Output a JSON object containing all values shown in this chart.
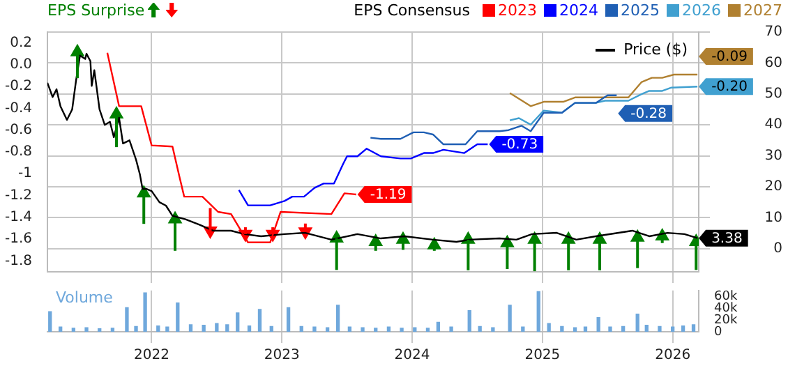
{
  "chart_data": [
    {
      "type": "line",
      "legend": "top",
      "legend_title": "EPS Consensus",
      "grid": true,
      "tick_labels": "y",
      "xlim": [
        2021.2,
        2026.2
      ],
      "xticks": [
        2022,
        2023,
        2024,
        2025,
        2026
      ],
      "ylim": [
        -1.9,
        0.3
      ],
      "yticks": [
        0.2,
        {
          "value": 0,
          "label": "0.0"
        },
        -0.2,
        -0.4,
        -0.6,
        -0.8,
        -1,
        -1.2,
        -1.4,
        -1.6,
        -1.8
      ],
      "y2lim": [
        -7.5,
        70
      ],
      "y2ticks": [
        0,
        10,
        20,
        30,
        40,
        50,
        60,
        70
      ],
      "series": [
        {
          "name": "2023",
          "color": "#ff0000",
          "x": [
            2021.66,
            2021.75,
            2021.92,
            2022.0,
            2022.16,
            2022.21,
            2022.25,
            2022.39,
            2022.51,
            2022.61,
            2022.74,
            2022.91,
            2022.99,
            2023.38,
            2023.48,
            2023.57
          ],
          "values": [
            0.11,
            -0.38,
            -0.38,
            -0.74,
            -0.75,
            -1.01,
            -1.21,
            -1.21,
            -1.35,
            -1.37,
            -1.63,
            -1.63,
            -1.35,
            -1.37,
            -1.18,
            -1.19
          ],
          "value_labels": [
            null,
            null,
            null,
            null,
            null,
            null,
            null,
            null,
            null,
            null,
            null,
            null,
            null,
            null,
            null,
            "-1.19"
          ]
        },
        {
          "name": "2024",
          "color": "#0000ff",
          "x": [
            2022.67,
            2022.74,
            2022.91,
            2023.02,
            2023.08,
            2023.17,
            2023.25,
            2023.32,
            2023.4,
            2023.47,
            2023.5,
            2023.58,
            2023.65,
            2023.76,
            2023.91,
            2023.99,
            2024.09,
            2024.16,
            2024.24,
            2024.4,
            2024.5,
            2024.58
          ],
          "values": [
            -1.15,
            -1.29,
            -1.29,
            -1.25,
            -1.21,
            -1.21,
            -1.13,
            -1.09,
            -1.09,
            -0.91,
            -0.84,
            -0.84,
            -0.77,
            -0.84,
            -0.86,
            -0.86,
            -0.81,
            -0.81,
            -0.78,
            -0.81,
            -0.73,
            -0.73
          ],
          "value_labels": [
            null,
            null,
            null,
            null,
            null,
            null,
            null,
            null,
            null,
            null,
            null,
            null,
            null,
            null,
            null,
            null,
            null,
            null,
            null,
            null,
            null,
            "-0.73"
          ]
        },
        {
          "name": "2025",
          "color": "#1f5fb4",
          "x": [
            2023.68,
            2023.76,
            2023.91,
            2024.01,
            2024.09,
            2024.16,
            2024.24,
            2024.41,
            2024.5,
            2024.67,
            2024.74,
            2024.84,
            2024.91,
            2025.01,
            2025.15,
            2025.25,
            2025.41,
            2025.5,
            2025.57
          ],
          "values": [
            -0.67,
            -0.68,
            -0.68,
            -0.62,
            -0.62,
            -0.64,
            -0.73,
            -0.73,
            -0.61,
            -0.61,
            -0.6,
            -0.56,
            -0.61,
            -0.44,
            -0.44,
            -0.35,
            -0.35,
            -0.28,
            -0.28
          ],
          "value_labels": [
            null,
            null,
            null,
            null,
            null,
            null,
            null,
            null,
            null,
            null,
            null,
            null,
            null,
            null,
            null,
            null,
            null,
            null,
            "-0.28"
          ]
        },
        {
          "name": "2026",
          "color": "#40a0d0",
          "x": [
            2024.75,
            2024.82,
            2024.91,
            2025.01,
            2025.15,
            2025.25,
            2025.41,
            2025.48,
            2025.66,
            2025.76,
            2025.82,
            2025.92,
            2025.99,
            2026.19
          ],
          "values": [
            -0.51,
            -0.49,
            -0.55,
            -0.42,
            -0.44,
            -0.35,
            -0.35,
            -0.33,
            -0.33,
            -0.27,
            -0.24,
            -0.24,
            -0.21,
            -0.2
          ],
          "value_labels": [
            null,
            null,
            null,
            null,
            null,
            null,
            null,
            null,
            null,
            null,
            null,
            null,
            null,
            "-0.20"
          ]
        },
        {
          "name": "2027",
          "color": "#b08030",
          "x": [
            2024.75,
            2024.91,
            2025.01,
            2025.16,
            2025.25,
            2025.66,
            2025.76,
            2025.84,
            2025.92,
            2026.01,
            2026.19
          ],
          "values": [
            -0.26,
            -0.38,
            -0.34,
            -0.34,
            -0.3,
            -0.3,
            -0.16,
            -0.12,
            -0.12,
            -0.09,
            -0.09
          ],
          "value_labels": [
            null,
            null,
            null,
            null,
            null,
            null,
            null,
            null,
            null,
            null,
            "-0.09"
          ]
        },
        {
          "name": "Price ($)",
          "axis": "y2",
          "color": "#000000",
          "x": [
            2021.2,
            2021.24,
            2021.27,
            2021.3,
            2021.35,
            2021.39,
            2021.42,
            2021.45,
            2021.49,
            2021.5,
            2021.53,
            2021.54,
            2021.56,
            2021.6,
            2021.64,
            2021.68,
            2021.71,
            2021.75,
            2021.78,
            2021.83,
            2021.88,
            2021.91,
            2021.93,
            2021.96,
            2022.0,
            2022.06,
            2022.11,
            2022.16,
            2022.26,
            2022.37,
            2022.47,
            2022.61,
            2022.71,
            2022.84,
            2023.02,
            2023.18,
            2023.38,
            2023.58,
            2023.76,
            2023.94,
            2024.16,
            2024.34,
            2024.44,
            2024.67,
            2024.8,
            2024.92,
            2025.11,
            2025.26,
            2025.41,
            2025.69,
            2025.82,
            2025.96,
            2026.09,
            2026.19
          ],
          "values": [
            53.6,
            49,
            51.5,
            46,
            41.6,
            45,
            54.4,
            62.4,
            61.3,
            63,
            60.6,
            52.6,
            57.7,
            45,
            40,
            41,
            36,
            42.3,
            34,
            35,
            28.8,
            24,
            19.3,
            19.3,
            18.6,
            15,
            13.9,
            10.6,
            9.5,
            7.7,
            5.8,
            5.8,
            4.7,
            4,
            4.7,
            5.1,
            2.9,
            4.7,
            3.3,
            4,
            2.9,
            2.2,
            2.9,
            3.3,
            2.9,
            4.7,
            5.1,
            2.9,
            4,
            5.8,
            4,
            5.1,
            4.7,
            3.38
          ],
          "value_labels": [
            null,
            null,
            null,
            null,
            null,
            null,
            null,
            null,
            null,
            null,
            null,
            null,
            null,
            null,
            null,
            null,
            null,
            null,
            null,
            null,
            null,
            null,
            null,
            null,
            null,
            null,
            null,
            null,
            null,
            null,
            null,
            null,
            null,
            null,
            null,
            null,
            null,
            null,
            null,
            null,
            null,
            null,
            null,
            null,
            null,
            null,
            null,
            null,
            null,
            null,
            null,
            null,
            null,
            "3.38"
          ]
        },
        {
          "name": "EPS Surprise",
          "type": "scatter",
          "axis": "y2",
          "marker": "triangle",
          "color": "#008000",
          "x": [
            2021.43,
            2021.73,
            2021.94,
            2022.18,
            2022.45,
            2022.72,
            2022.93,
            2023.18,
            2023.42,
            2023.72,
            2023.93,
            2024.17,
            2024.43,
            2024.73,
            2024.94,
            2025.2,
            2025.44,
            2025.73,
            2025.92,
            2026.18
          ],
          "values": [
            63.5,
            43.4,
            17.9,
            9.5,
            5.8,
            4.7,
            4.7,
            5.5,
            3.3,
            2.2,
            2.9,
            1.1,
            2.9,
            1.8,
            2.9,
            2.9,
            2.9,
            3.6,
            4.0,
            2.2
          ],
          "errors": [
            [
              55.1,
              63.5
            ],
            [
              32.8,
              43.4
            ],
            [
              8.0,
              17.9
            ],
            [
              -0.7,
              9.5
            ],
            [
              5.8,
              13.1
            ],
            [
              4.7,
              6.9
            ],
            [
              4.7,
              6.9
            ],
            [
              5.5,
              8.1
            ],
            [
              -6.9,
              3.3
            ],
            [
              -0.7,
              2.2
            ],
            [
              -0.4,
              2.9
            ],
            [
              -0.7,
              1.1
            ],
            [
              -7.0,
              2.9
            ],
            [
              -6.6,
              1.8
            ],
            [
              -7.3,
              2.9
            ],
            [
              -7.0,
              2.9
            ],
            [
              -7.0,
              2.9
            ],
            [
              -6.3,
              3.6
            ],
            [
              1.8,
              4.0
            ],
            [
              -6.9,
              2.2
            ]
          ],
          "colors": [
            "#008000",
            "#008000",
            "#008000",
            "#008000",
            "#ff0000",
            "#ff0000",
            "#ff0000",
            "#ff0000",
            "#008000",
            "#008000",
            "#008000",
            "#008000",
            "#008000",
            "#008000",
            "#008000",
            "#008000",
            "#008000",
            "#008000",
            "#008000",
            "#008000"
          ]
        }
      ]
    },
    {
      "type": "bar",
      "ylabel": "Volume",
      "color": "#6fa8dc",
      "grid": "x",
      "xlim": [
        2021.2,
        2026.2
      ],
      "xticks": [
        2022,
        2023,
        2024,
        2025,
        2026
      ],
      "ylim": [
        0,
        70000
      ],
      "yticks": [
        0,
        {
          "value": 20000,
          "label": "20k"
        },
        {
          "value": 40000,
          "label": "40k"
        },
        {
          "value": 60000,
          "label": "60k"
        }
      ],
      "x": [
        2021.22,
        2021.3,
        2021.4,
        2021.5,
        2021.6,
        2021.7,
        2021.81,
        2021.88,
        2021.95,
        2022.05,
        2022.12,
        2022.2,
        2022.3,
        2022.4,
        2022.5,
        2022.58,
        2022.66,
        2022.75,
        2022.83,
        2022.92,
        2023.05,
        2023.15,
        2023.25,
        2023.35,
        2023.43,
        2023.52,
        2023.62,
        2023.72,
        2023.82,
        2023.92,
        2024.02,
        2024.12,
        2024.2,
        2024.3,
        2024.44,
        2024.52,
        2024.62,
        2024.75,
        2024.85,
        2024.97,
        2025.05,
        2025.15,
        2025.25,
        2025.33,
        2025.43,
        2025.52,
        2025.62,
        2025.73,
        2025.8,
        2025.9,
        2026.0,
        2026.08,
        2026.16
      ],
      "values": [
        34000,
        8000,
        6000,
        7000,
        5000,
        6000,
        41000,
        9000,
        66000,
        10000,
        8000,
        49000,
        12000,
        11000,
        14000,
        12000,
        32000,
        10000,
        38000,
        9000,
        41000,
        9000,
        8000,
        7000,
        45000,
        8000,
        7000,
        6000,
        8000,
        6000,
        7000,
        6000,
        16000,
        8000,
        36000,
        9000,
        7000,
        45000,
        8000,
        68000,
        14000,
        9000,
        7000,
        8000,
        24000,
        8000,
        9000,
        30000,
        11000,
        9000,
        8000,
        10000,
        12000
      ]
    }
  ]
}
